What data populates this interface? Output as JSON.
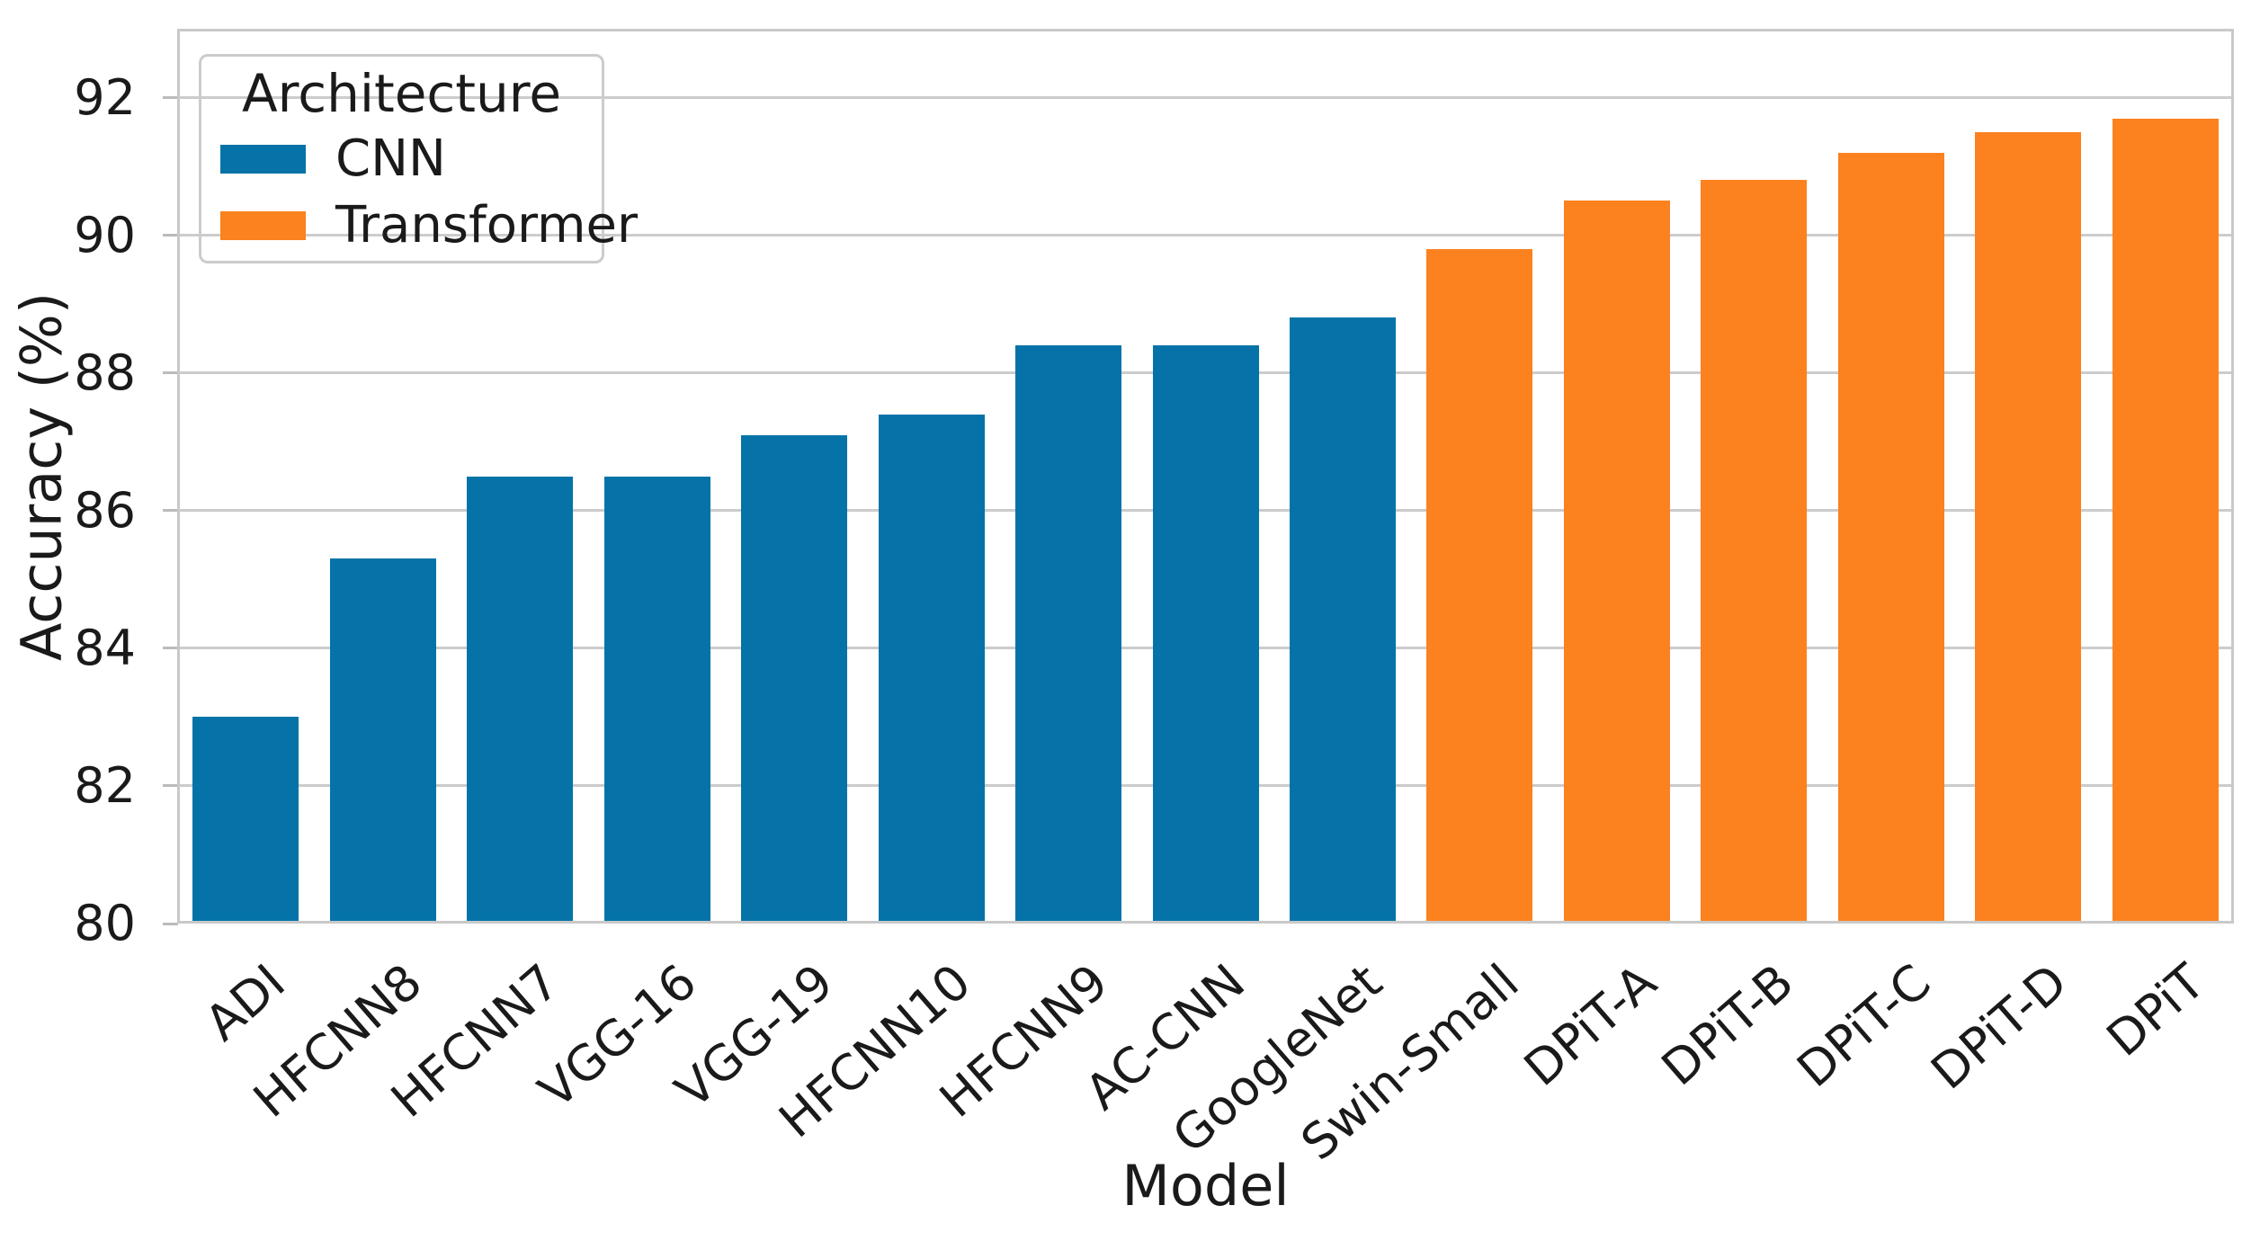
{
  "chart_data": {
    "type": "bar",
    "title": "",
    "xlabel": "Model",
    "ylabel": "Accuracy (%)",
    "ylim": [
      80,
      93
    ],
    "yticks": [
      80,
      82,
      84,
      86,
      88,
      90,
      92
    ],
    "grid": true,
    "categories": [
      "ADI",
      "HFCNN8",
      "HFCNN7",
      "VGG-16",
      "VGG-19",
      "HFCNN10",
      "HFCNN9",
      "AC-CNN",
      "GoogleNet",
      "Swin-Small",
      "DPiT-A",
      "DPiT-B",
      "DPiT-C",
      "DPiT-D",
      "DPiT"
    ],
    "values": [
      83.0,
      85.3,
      86.5,
      86.5,
      87.1,
      87.4,
      88.4,
      88.4,
      88.8,
      89.8,
      90.5,
      90.8,
      91.2,
      91.5,
      91.7
    ],
    "groups": [
      "CNN",
      "CNN",
      "CNN",
      "CNN",
      "CNN",
      "CNN",
      "CNN",
      "CNN",
      "CNN",
      "Transformer",
      "Transformer",
      "Transformer",
      "Transformer",
      "Transformer",
      "Transformer"
    ],
    "palette": {
      "CNN": "#0573a8",
      "Transformer": "#fb821e"
    },
    "legend": {
      "title": "Architecture",
      "position": "upper-left",
      "entries": [
        {
          "label": "CNN",
          "color": "#0573a8"
        },
        {
          "label": "Transformer",
          "color": "#fb821e"
        }
      ]
    }
  }
}
